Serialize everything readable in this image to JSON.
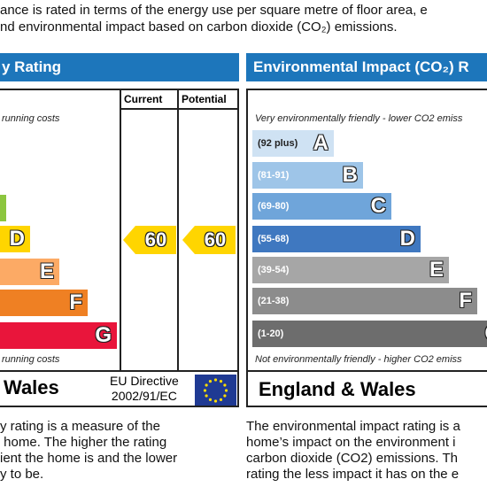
{
  "intro": [
    "ance is rated in terms of the energy use per square metre of floor area, e",
    "nd environmental impact based on carbon dioxide (CO₂) emissions."
  ],
  "left": {
    "title": "y Rating",
    "columns": [
      "Current",
      "Potential"
    ],
    "top_note": "running costs",
    "bottom_note": "running costs",
    "bands": [
      {
        "letter": "D",
        "color": "#ffd500",
        "width": 34
      },
      {
        "letter": "E",
        "color": "#fcaa65",
        "width": 67
      },
      {
        "letter": "F",
        "color": "#ef8023",
        "width": 99
      },
      {
        "letter": "G",
        "color": "#e9153b",
        "width": 132
      }
    ],
    "current": "60",
    "potential": "60",
    "region": "Wales",
    "directive": [
      "EU Directive",
      "2002/91/EC"
    ],
    "paragraph": [
      "y rating is a measure of the",
      " home. The higher the rating",
      "ient the home is and the lower",
      "y to be."
    ]
  },
  "right": {
    "title": "Environmental Impact (CO₂) R",
    "top_note": "Very environmentally friendly - lower CO2 emiss",
    "bottom_note": "Not environmentally friendly - higher CO2 emiss",
    "bands": [
      {
        "range": "(92 plus)",
        "letter": "A",
        "color": "#cfe2f3",
        "width": 92
      },
      {
        "range": "(81-91)",
        "letter": "B",
        "color": "#9ec5e8",
        "width": 125
      },
      {
        "range": "(69-80)",
        "letter": "C",
        "color": "#6fa5da",
        "width": 157
      },
      {
        "range": "(55-68)",
        "letter": "D",
        "color": "#3f78c0",
        "width": 190
      },
      {
        "range": "(39-54)",
        "letter": "E",
        "color": "#a6a6a6",
        "width": 222
      },
      {
        "range": "(21-38)",
        "letter": "F",
        "color": "#8c8c8c",
        "width": 254
      },
      {
        "range": "(1-20)",
        "letter": "G",
        "color": "#6d6d6d",
        "width": 287
      }
    ],
    "region": "England & Wales",
    "paragraph": [
      "The environmental impact rating is a",
      "home’s impact on the environment i",
      "carbon dioxide (CO2) emissions. Th",
      "rating the less impact it has on the e"
    ]
  }
}
